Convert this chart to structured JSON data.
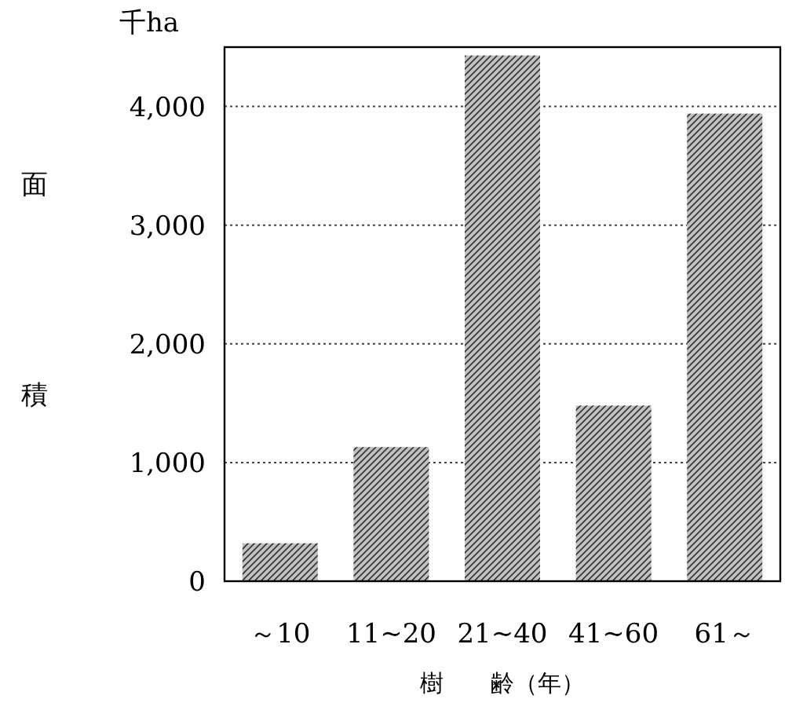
{
  "chart_data": {
    "type": "bar",
    "ylabel": "面積",
    "xlabel": "樹　　齢（年）",
    "annotations": [
      "千ha"
    ],
    "categories": [
      "～10",
      "11~20",
      "21~40",
      "41~60",
      "61～"
    ],
    "values": [
      320,
      1130,
      4430,
      1480,
      3940
    ],
    "color": "#c0c0c0",
    "ylim": [
      0,
      4500
    ],
    "yticks": [
      {
        "value": 0,
        "label": "0"
      },
      {
        "value": 1000,
        "label": "1,000"
      },
      {
        "value": 2000,
        "label": "2,000"
      },
      {
        "value": 3000,
        "label": "3,000"
      },
      {
        "value": 4000,
        "label": "4,000"
      }
    ],
    "grid": "y"
  }
}
